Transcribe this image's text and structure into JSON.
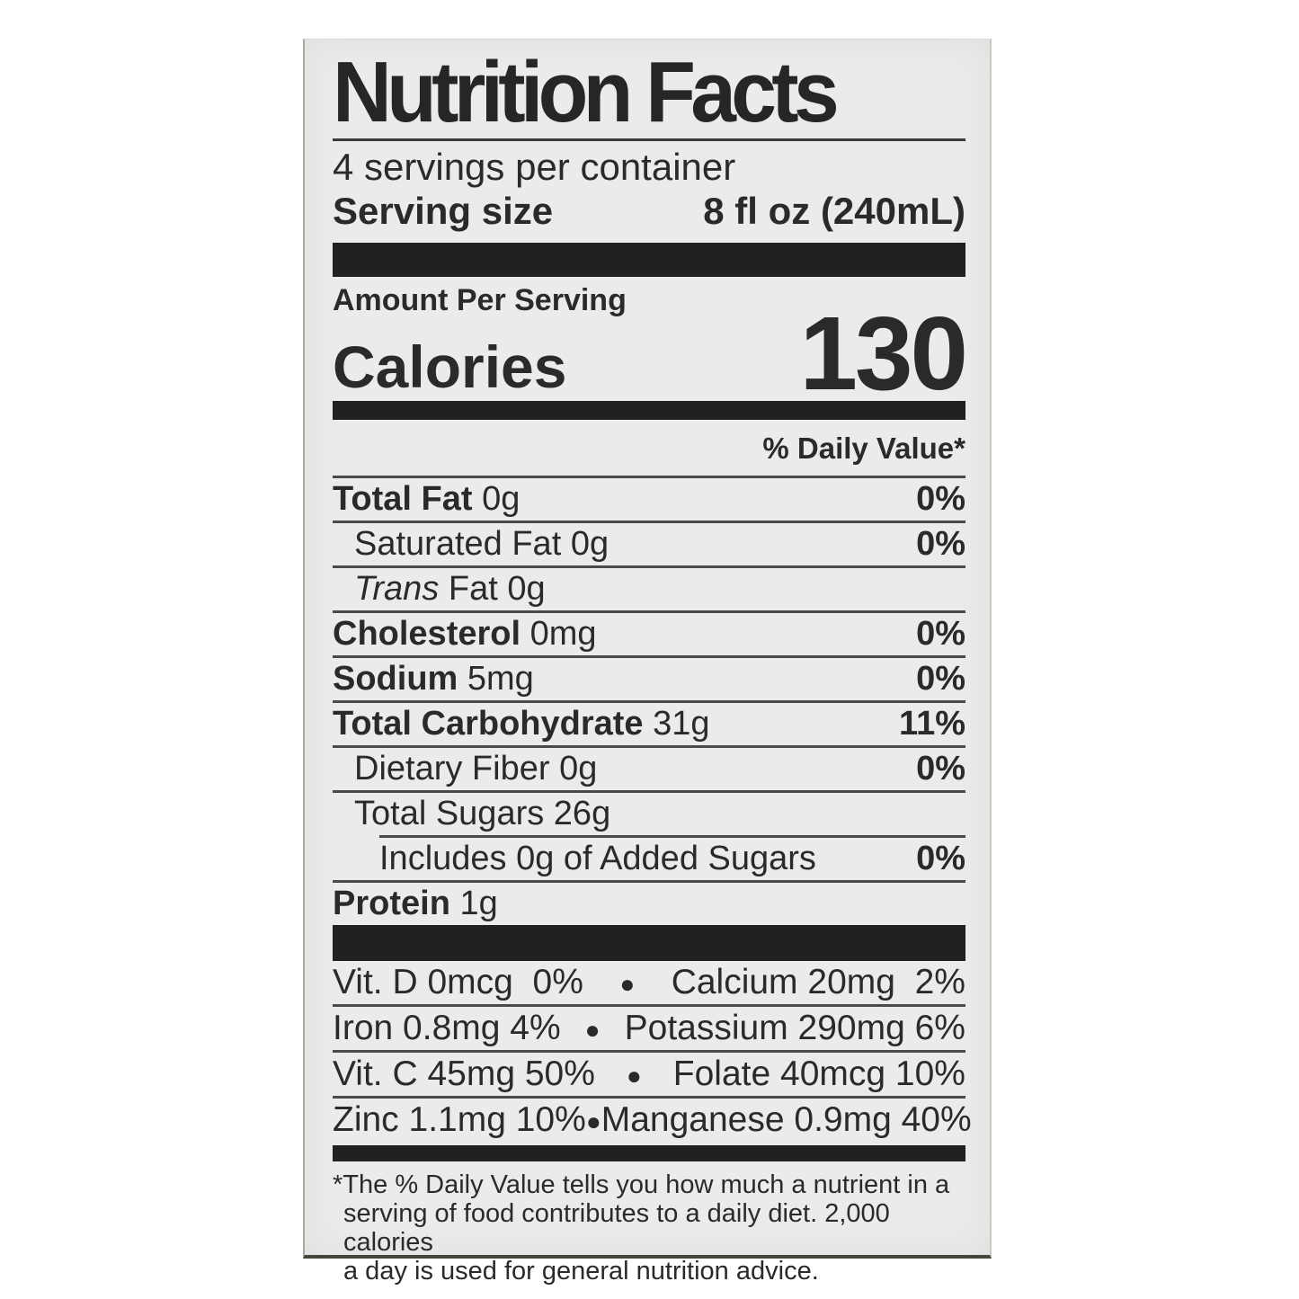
{
  "colors": {
    "page_bg": "#ffffff",
    "label_bg": "#eaecea",
    "text": "#2a2a2a",
    "bar": "#212121"
  },
  "label": {
    "title": "Nutrition Facts",
    "servings_per_container": "4 servings per container",
    "serving_size_label": "Serving size",
    "serving_size_value": "8 fl oz (240mL)",
    "amount_per_serving": "Amount Per Serving",
    "calories_label": "Calories",
    "calories_value": "130",
    "daily_value_header": "% Daily Value*",
    "bullet": "●",
    "nutrients": [
      {
        "name": "Total Fat",
        "amount": "0g",
        "dv": "0%"
      },
      {
        "name": "Saturated Fat",
        "amount": "0g",
        "dv": "0%"
      },
      {
        "name_italic": "Trans",
        "name": "Fat",
        "amount": "0g",
        "dv": ""
      },
      {
        "name": "Cholesterol",
        "amount": "0mg",
        "dv": "0%"
      },
      {
        "name": "Sodium",
        "amount": "5mg",
        "dv": "0%"
      },
      {
        "name": "Total Carbohydrate",
        "amount": "31g",
        "dv": "11%"
      },
      {
        "name": "Dietary Fiber",
        "amount": "0g",
        "dv": "0%"
      },
      {
        "name": "Total Sugars",
        "amount": "26g",
        "dv": ""
      },
      {
        "name": "Includes 0g of Added Sugars",
        "amount": "",
        "dv": "0%"
      },
      {
        "name": "Protein",
        "amount": "1g",
        "dv": ""
      }
    ],
    "micronutrients": [
      {
        "left": "Vit. D 0mcg  0%",
        "right": "Calcium 20mg  2%"
      },
      {
        "left": "Iron 0.8mg 4%",
        "right": "Potassium 290mg 6%"
      },
      {
        "left": "Vit. C 45mg 50%",
        "right": "Folate 40mcg 10%"
      },
      {
        "left": "Zinc 1.1mg 10%",
        "right": "Manganese 0.9mg 40%"
      }
    ],
    "footnote_lines": [
      "*The % Daily Value tells you how much a nutrient in a",
      "serving of food contributes to a daily diet. 2,000 calories",
      "a day is used for general nutrition advice."
    ]
  }
}
